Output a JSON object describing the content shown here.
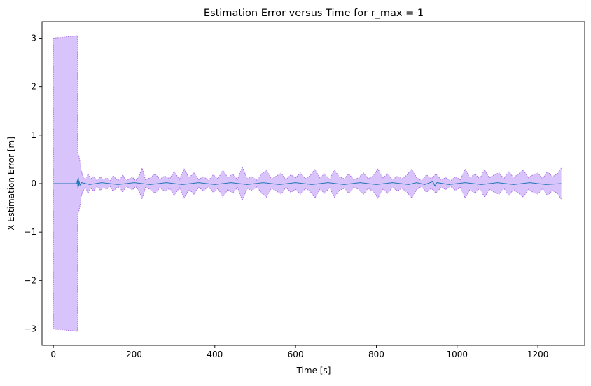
{
  "chart_data": {
    "type": "area",
    "title": "Estimation Error versus Time for r_max = 1",
    "xlabel": "Time [s]",
    "ylabel": "X Estimation Error [m]",
    "xlim": [
      -28,
      1316
    ],
    "ylim": [
      -3.34,
      3.34
    ],
    "x_ticks": [
      0,
      200,
      400,
      600,
      800,
      1000,
      1200
    ],
    "x_tick_labels": [
      "0",
      "200",
      "400",
      "600",
      "800",
      "1000",
      "1200"
    ],
    "y_ticks": [
      -3,
      -2,
      -1,
      0,
      1,
      2,
      3
    ],
    "y_tick_labels": [
      "−3",
      "−2",
      "−1",
      "0",
      "1",
      "2",
      "3"
    ],
    "grid": false,
    "legend": "none",
    "colors": {
      "band_fill": "#d8c3fb",
      "band_edge": "#a96ee6",
      "error_line": "#1f77b4"
    },
    "series": [
      {
        "role": "covariance-bound",
        "x": [
          0,
          60,
          60,
          63,
          66,
          68,
          72,
          76,
          80,
          86,
          92,
          100,
          108,
          116,
          124,
          132,
          140,
          148,
          156,
          164,
          172,
          180,
          188,
          196,
          204,
          212,
          220,
          228,
          240,
          252,
          264,
          276,
          288,
          300,
          312,
          324,
          336,
          348,
          360,
          372,
          384,
          396,
          408,
          420,
          432,
          444,
          456,
          468,
          480,
          492,
          504,
          516,
          528,
          540,
          552,
          564,
          576,
          588,
          600,
          612,
          624,
          636,
          648,
          660,
          672,
          684,
          696,
          708,
          720,
          732,
          744,
          756,
          768,
          780,
          792,
          804,
          816,
          828,
          840,
          852,
          864,
          876,
          888,
          900,
          912,
          924,
          936,
          948,
          960,
          972,
          984,
          996,
          1008,
          1020,
          1032,
          1044,
          1056,
          1068,
          1080,
          1092,
          1104,
          1116,
          1128,
          1140,
          1152,
          1164,
          1176,
          1188,
          1200,
          1212,
          1224,
          1236,
          1248,
          1258
        ],
        "upper": [
          3.0,
          3.05,
          0.62,
          0.58,
          0.45,
          0.3,
          0.18,
          0.12,
          0.08,
          0.2,
          0.09,
          0.15,
          0.06,
          0.14,
          0.08,
          0.12,
          0.05,
          0.16,
          0.09,
          0.07,
          0.18,
          0.05,
          0.1,
          0.13,
          0.06,
          0.15,
          0.32,
          0.08,
          0.12,
          0.2,
          0.09,
          0.16,
          0.1,
          0.25,
          0.08,
          0.3,
          0.12,
          0.22,
          0.08,
          0.15,
          0.06,
          0.18,
          0.1,
          0.28,
          0.12,
          0.2,
          0.08,
          0.35,
          0.1,
          0.14,
          0.07,
          0.2,
          0.28,
          0.1,
          0.15,
          0.22,
          0.08,
          0.18,
          0.12,
          0.22,
          0.1,
          0.16,
          0.3,
          0.12,
          0.2,
          0.08,
          0.28,
          0.14,
          0.1,
          0.2,
          0.08,
          0.12,
          0.22,
          0.1,
          0.16,
          0.3,
          0.12,
          0.2,
          0.08,
          0.15,
          0.1,
          0.18,
          0.3,
          0.12,
          0.06,
          0.18,
          0.1,
          0.2,
          0.08,
          0.12,
          0.06,
          0.14,
          0.08,
          0.3,
          0.12,
          0.2,
          0.1,
          0.28,
          0.12,
          0.18,
          0.22,
          0.1,
          0.25,
          0.12,
          0.2,
          0.28,
          0.12,
          0.18,
          0.22,
          0.1,
          0.25,
          0.14,
          0.2,
          0.32
        ],
        "lower": [
          -3.0,
          -3.05,
          -0.62,
          -0.58,
          -0.45,
          -0.3,
          -0.18,
          -0.12,
          -0.08,
          -0.2,
          -0.09,
          -0.15,
          -0.06,
          -0.14,
          -0.08,
          -0.12,
          -0.05,
          -0.16,
          -0.09,
          -0.07,
          -0.18,
          -0.05,
          -0.1,
          -0.13,
          -0.06,
          -0.15,
          -0.32,
          -0.08,
          -0.12,
          -0.2,
          -0.09,
          -0.16,
          -0.1,
          -0.25,
          -0.08,
          -0.3,
          -0.12,
          -0.22,
          -0.08,
          -0.15,
          -0.06,
          -0.18,
          -0.1,
          -0.28,
          -0.12,
          -0.2,
          -0.08,
          -0.35,
          -0.1,
          -0.14,
          -0.07,
          -0.2,
          -0.28,
          -0.1,
          -0.15,
          -0.22,
          -0.08,
          -0.18,
          -0.12,
          -0.22,
          -0.1,
          -0.16,
          -0.3,
          -0.12,
          -0.2,
          -0.08,
          -0.28,
          -0.14,
          -0.1,
          -0.2,
          -0.08,
          -0.12,
          -0.22,
          -0.1,
          -0.16,
          -0.3,
          -0.12,
          -0.2,
          -0.08,
          -0.15,
          -0.1,
          -0.18,
          -0.3,
          -0.12,
          -0.06,
          -0.18,
          -0.1,
          -0.2,
          -0.08,
          -0.12,
          -0.06,
          -0.14,
          -0.08,
          -0.3,
          -0.12,
          -0.2,
          -0.1,
          -0.28,
          -0.12,
          -0.18,
          -0.22,
          -0.1,
          -0.25,
          -0.12,
          -0.2,
          -0.28,
          -0.12,
          -0.18,
          -0.22,
          -0.1,
          -0.25,
          -0.14,
          -0.2,
          -0.32
        ]
      },
      {
        "role": "estimation-error",
        "x": [
          0,
          58,
          60,
          61,
          62,
          63,
          64,
          66,
          70,
          90,
          120,
          160,
          200,
          240,
          280,
          320,
          360,
          400,
          440,
          480,
          520,
          560,
          600,
          640,
          680,
          720,
          760,
          800,
          840,
          880,
          900,
          920,
          940,
          945,
          950,
          980,
          1020,
          1060,
          1100,
          1140,
          1180,
          1220,
          1258
        ],
        "values": [
          0,
          0,
          0.08,
          -0.1,
          0.12,
          -0.06,
          0.04,
          -0.03,
          0.02,
          -0.02,
          0.02,
          -0.02,
          0.02,
          -0.02,
          0.02,
          -0.02,
          0.02,
          -0.02,
          0.02,
          -0.02,
          0.02,
          -0.02,
          0.02,
          -0.02,
          0.02,
          -0.02,
          0.02,
          -0.02,
          0.02,
          -0.02,
          0.02,
          -0.02,
          0.04,
          -0.05,
          0.02,
          -0.02,
          0.02,
          -0.02,
          0.02,
          -0.02,
          0.02,
          -0.02,
          0
        ]
      }
    ]
  }
}
